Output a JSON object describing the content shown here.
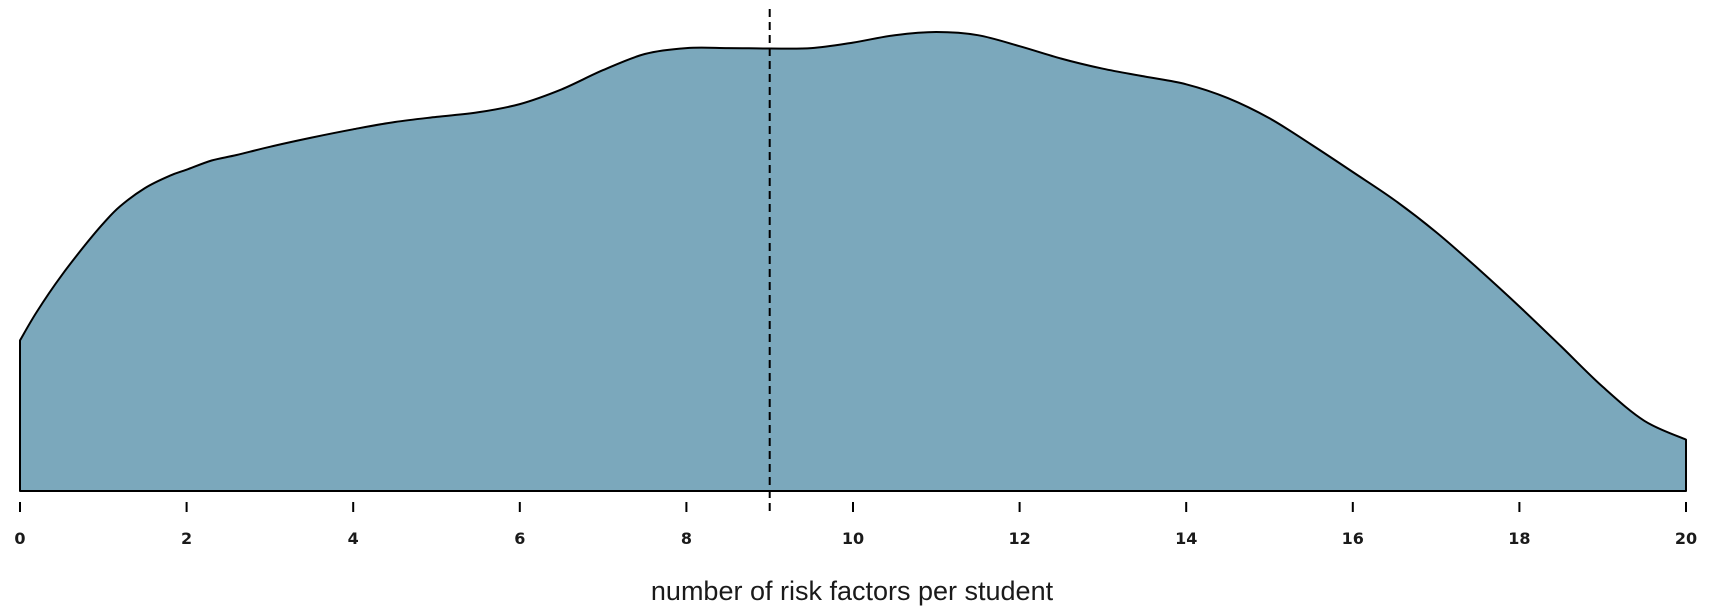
{
  "chart_data": {
    "type": "area",
    "xlabel": "number of risk factors per student",
    "ylabel": "",
    "xlim": [
      0,
      20
    ],
    "ylim": [
      0,
      1
    ],
    "grid": false,
    "legend": "none",
    "fill_color": "#7ba8bc",
    "outline_color": "#000000",
    "x_ticks": [
      0,
      2,
      4,
      6,
      8,
      10,
      12,
      14,
      16,
      18,
      20
    ],
    "x_tick_labels": [
      "0",
      "2",
      "4",
      "6",
      "8",
      "10",
      "12",
      "14",
      "16",
      "18",
      "20"
    ],
    "reference_line": {
      "x": 9.0,
      "style": "dashed"
    },
    "series": [
      {
        "x": [
          0,
          0.2,
          0.5,
          0.8,
          1.0,
          1.2,
          1.5,
          1.8,
          2.0,
          2.3,
          2.6,
          3.0,
          3.5,
          4.0,
          4.5,
          5.0,
          5.5,
          6.0,
          6.5,
          7.0,
          7.5,
          8.0,
          8.5,
          9.0,
          9.5,
          10.0,
          10.5,
          11.0,
          11.5,
          12.0,
          12.5,
          13.0,
          13.5,
          14.0,
          14.5,
          15.0,
          15.5,
          16.0,
          16.5,
          17.0,
          17.5,
          18.0,
          18.5,
          19.0,
          19.5,
          20.0
        ],
        "values": [
          0.328,
          0.39,
          0.47,
          0.54,
          0.583,
          0.62,
          0.66,
          0.687,
          0.7,
          0.72,
          0.732,
          0.75,
          0.77,
          0.788,
          0.804,
          0.815,
          0.825,
          0.843,
          0.875,
          0.917,
          0.952,
          0.965,
          0.965,
          0.964,
          0.965,
          0.977,
          0.993,
          1.0,
          0.993,
          0.969,
          0.942,
          0.92,
          0.903,
          0.886,
          0.856,
          0.812,
          0.755,
          0.695,
          0.634,
          0.564,
          0.485,
          0.402,
          0.315,
          0.227,
          0.153,
          0.112
        ]
      }
    ]
  }
}
